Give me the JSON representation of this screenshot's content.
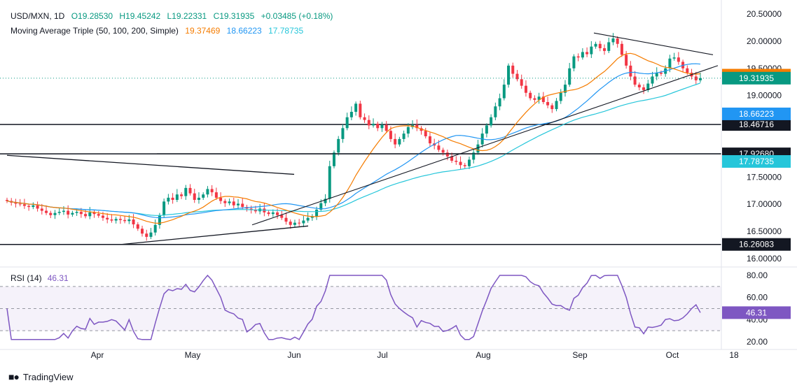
{
  "header": {
    "symbol": "USD/MXN, 1D",
    "open": "O19.28530",
    "high": "H19.45242",
    "low": "L19.22331",
    "close": "C19.31935",
    "change": "+0.03485 (+0.18%)",
    "ma_label": "Moving Average Triple (50, 100, 200, Simple)",
    "ma50": "19.37469",
    "ma100": "18.66223",
    "ma200": "17.78735"
  },
  "rsi_header": {
    "label": "RSI (14)",
    "value": "46.31"
  },
  "brand": "TradingView",
  "colors": {
    "up": "#089981",
    "down": "#f23645",
    "ma50": "#f57c00",
    "ma100": "#2196f3",
    "ma200": "#26c6da",
    "rsi": "#7e57c2",
    "hline": "#131722",
    "price": "#089981"
  },
  "chart_data": [
    {
      "type": "candlestick",
      "title": "USD/MXN, 1D",
      "y_ticks": [
        "20.50000",
        "20.00000",
        "19.50000",
        "19.00000",
        "17.50000",
        "17.00000",
        "16.50000",
        "16.00000"
      ],
      "ylim": [
        15.85,
        20.6
      ],
      "x_ticks": [
        "Apr",
        "May",
        "Jun",
        "Jul",
        "Aug",
        "Sep",
        "Oct",
        "18"
      ],
      "horizontal_levels": [
        {
          "value": 18.46716,
          "label": "18.46716"
        },
        {
          "value": 17.9268,
          "label": "17.92680"
        },
        {
          "value": 16.26083,
          "label": "16.26083"
        }
      ],
      "price_labels": [
        {
          "name": "MA 50",
          "value": 19.37469,
          "label": "19.37469",
          "color": "#f57c00"
        },
        {
          "name": "Close",
          "value": 19.31935,
          "label": "19.31935",
          "color": "#089981"
        },
        {
          "name": "MA 100",
          "value": 18.66223,
          "label": "18.66223",
          "color": "#2196f3"
        },
        {
          "name": "MA 200",
          "value": 17.78735,
          "label": "17.78735",
          "color": "#26c6da"
        }
      ],
      "closes": [
        17.06,
        17.03,
        17.01,
        17.0,
        16.97,
        16.95,
        16.98,
        16.92,
        16.88,
        16.84,
        16.8,
        16.84,
        16.86,
        16.88,
        16.81,
        16.84,
        16.86,
        16.82,
        16.78,
        16.85,
        16.82,
        16.79,
        16.75,
        16.72,
        16.7,
        16.73,
        16.71,
        16.69,
        16.72,
        16.63,
        16.55,
        16.46,
        16.4,
        16.48,
        16.62,
        16.8,
        17.05,
        17.12,
        17.08,
        17.18,
        17.15,
        17.3,
        17.2,
        17.08,
        17.12,
        17.18,
        17.28,
        17.22,
        17.12,
        17.06,
        17.02,
        17.05,
        16.98,
        17.01,
        16.95,
        16.92,
        16.9,
        16.87,
        16.92,
        16.85,
        16.82,
        16.85,
        16.8,
        16.75,
        16.68,
        16.62,
        16.66,
        16.65,
        16.7,
        16.75,
        16.78,
        16.9,
        17.02,
        17.1,
        17.7,
        17.95,
        18.2,
        18.4,
        18.6,
        18.7,
        18.85,
        18.6,
        18.55,
        18.45,
        18.48,
        18.4,
        18.46,
        18.35,
        18.2,
        18.1,
        18.2,
        18.3,
        18.42,
        18.46,
        18.4,
        18.35,
        18.25,
        18.12,
        18.08,
        18.0,
        17.95,
        17.88,
        17.8,
        17.78,
        17.72,
        17.7,
        17.82,
        17.95,
        18.1,
        18.3,
        18.45,
        18.6,
        18.8,
        18.95,
        19.2,
        19.55,
        19.4,
        19.3,
        19.18,
        19.05,
        18.95,
        18.92,
        18.98,
        18.88,
        18.82,
        18.75,
        18.9,
        19.05,
        19.2,
        19.5,
        19.72,
        19.7,
        19.8,
        19.76,
        19.9,
        19.95,
        19.87,
        19.82,
        19.98,
        20.05,
        19.95,
        19.75,
        19.55,
        19.35,
        19.2,
        19.15,
        19.1,
        19.22,
        19.35,
        19.42,
        19.4,
        19.5,
        19.68,
        19.7,
        19.62,
        19.5,
        19.42,
        19.35,
        19.28,
        19.32
      ],
      "ma50_end": 19.37469,
      "ma100_end": 18.66223,
      "ma200_end": 17.78735
    },
    {
      "type": "line",
      "title": "RSI (14)",
      "y_ticks": [
        "80.00",
        "60.00",
        "40.00",
        "20.00"
      ],
      "ylim": [
        20,
        82
      ],
      "bands": [
        30,
        50,
        70
      ],
      "last_value": 46.31
    }
  ]
}
